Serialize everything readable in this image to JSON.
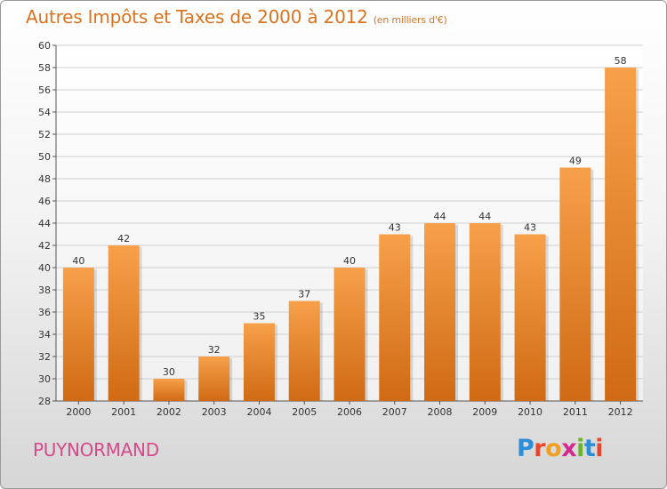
{
  "header": {
    "title": "Autres Impôts et Taxes de 2000 à 2012",
    "subtitle": "(en milliers d'€)"
  },
  "commune": "PUYNORMAND",
  "logo": {
    "text": "Proxiti",
    "letters": [
      {
        "ch": "P",
        "color": "#2a8fd8"
      },
      {
        "ch": "r",
        "color": "#e8462a"
      },
      {
        "ch": "o",
        "color": "#f0a020"
      },
      {
        "ch": "x",
        "color": "#d22b8f"
      },
      {
        "ch": "i",
        "color": "#6ab42d"
      },
      {
        "ch": "t",
        "color": "#2a8fd8"
      },
      {
        "ch": "i",
        "color": "#e8462a"
      }
    ]
  },
  "colors": {
    "bar_top": "#f7a04a",
    "bar_bottom": "#d06a14",
    "grid": "#cfcfcf",
    "axis_text": "#333333",
    "title": "#d9731f"
  },
  "chart_data": {
    "type": "bar",
    "title": "Autres Impôts et Taxes de 2000 à 2012",
    "subtitle": "(en milliers d'€)",
    "categories": [
      "2000",
      "2001",
      "2002",
      "2003",
      "2004",
      "2005",
      "2006",
      "2007",
      "2008",
      "2009",
      "2010",
      "2011",
      "2012"
    ],
    "values": [
      40,
      42,
      30,
      32,
      35,
      37,
      40,
      43,
      44,
      44,
      43,
      49,
      58
    ],
    "ylim": [
      28,
      60
    ],
    "yticks": [
      28,
      30,
      32,
      34,
      36,
      38,
      40,
      42,
      44,
      46,
      48,
      50,
      52,
      54,
      56,
      58,
      60
    ],
    "grid": true,
    "data_labels": true
  }
}
